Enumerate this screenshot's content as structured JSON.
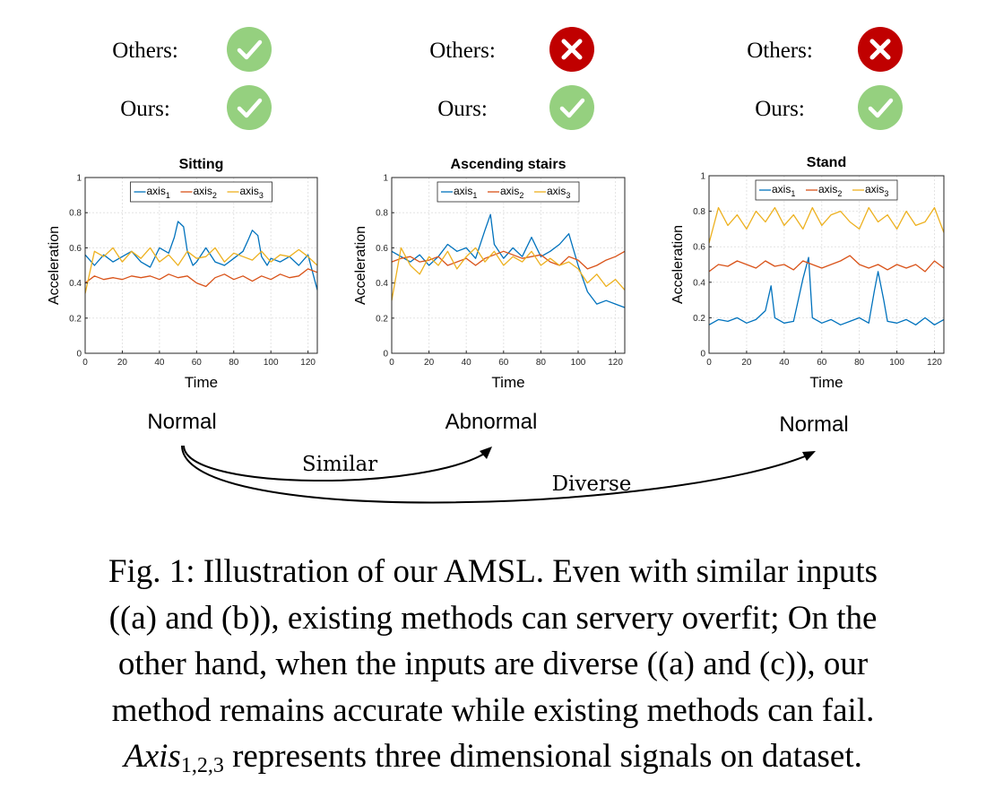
{
  "status_rows": [
    {
      "label": "Others:",
      "status": [
        "check",
        "cross",
        "cross"
      ]
    },
    {
      "label": "Ours:",
      "status": [
        "check",
        "check",
        "check"
      ]
    }
  ],
  "colors": {
    "check": "#95d07f",
    "cross": "#c00000",
    "axis1": "#0072bd",
    "axis2": "#d95319",
    "axis3": "#edb120",
    "grid": "#e3e3e3"
  },
  "icons": {
    "check": "check-icon",
    "cross": "cross-icon"
  },
  "panel_labels": [
    "Normal",
    "Abnormal",
    "Normal"
  ],
  "arrows": {
    "similar": "Similar",
    "diverse": "Diverse"
  },
  "chart_data": [
    {
      "type": "line",
      "title": "Sitting",
      "xlabel": "Time",
      "ylabel": "Acceleration",
      "xlim": [
        0,
        125
      ],
      "ylim": [
        0,
        1
      ],
      "xticks": [
        "0",
        "20",
        "40",
        "60",
        "80",
        "100",
        "120"
      ],
      "yticks": [
        "0",
        "0.2",
        "0.4",
        "0.6",
        "0.8",
        "1"
      ],
      "grid": true,
      "legend": "top-center",
      "series": [
        {
          "name": "axis1",
          "label_main": "axis",
          "label_sub": "1",
          "x": [
            0,
            5,
            10,
            15,
            20,
            25,
            30,
            35,
            40,
            45,
            48,
            50,
            53,
            55,
            58,
            60,
            65,
            70,
            75,
            80,
            85,
            88,
            90,
            93,
            95,
            98,
            100,
            105,
            110,
            115,
            120,
            125
          ],
          "y": [
            0.56,
            0.5,
            0.56,
            0.52,
            0.55,
            0.58,
            0.52,
            0.49,
            0.6,
            0.57,
            0.66,
            0.75,
            0.72,
            0.58,
            0.5,
            0.52,
            0.6,
            0.52,
            0.5,
            0.54,
            0.58,
            0.65,
            0.7,
            0.67,
            0.55,
            0.5,
            0.54,
            0.52,
            0.55,
            0.5,
            0.56,
            0.36
          ]
        },
        {
          "name": "axis2",
          "label_main": "axis",
          "label_sub": "2",
          "x": [
            0,
            5,
            10,
            15,
            20,
            25,
            30,
            35,
            40,
            45,
            50,
            55,
            60,
            65,
            70,
            75,
            80,
            85,
            90,
            95,
            100,
            105,
            110,
            115,
            120,
            125
          ],
          "y": [
            0.4,
            0.44,
            0.42,
            0.43,
            0.42,
            0.44,
            0.43,
            0.44,
            0.42,
            0.45,
            0.43,
            0.44,
            0.4,
            0.38,
            0.43,
            0.45,
            0.42,
            0.44,
            0.41,
            0.44,
            0.42,
            0.45,
            0.43,
            0.44,
            0.48,
            0.46
          ]
        },
        {
          "name": "axis3",
          "label_main": "axis",
          "label_sub": "3",
          "x": [
            0,
            5,
            10,
            15,
            20,
            25,
            30,
            35,
            40,
            45,
            50,
            55,
            60,
            65,
            70,
            75,
            80,
            85,
            90,
            95,
            100,
            105,
            110,
            115,
            120,
            125
          ],
          "y": [
            0.34,
            0.58,
            0.55,
            0.6,
            0.52,
            0.58,
            0.54,
            0.6,
            0.52,
            0.56,
            0.5,
            0.58,
            0.54,
            0.55,
            0.6,
            0.52,
            0.57,
            0.55,
            0.53,
            0.58,
            0.52,
            0.56,
            0.55,
            0.59,
            0.55,
            0.5
          ]
        }
      ]
    },
    {
      "type": "line",
      "title": "Ascending stairs",
      "xlabel": "Time",
      "ylabel": "Acceleration",
      "xlim": [
        0,
        125
      ],
      "ylim": [
        0,
        1
      ],
      "xticks": [
        "0",
        "20",
        "40",
        "60",
        "80",
        "100",
        "120"
      ],
      "yticks": [
        "0",
        "0.2",
        "0.4",
        "0.6",
        "0.8",
        "1"
      ],
      "grid": true,
      "legend": "top-center",
      "series": [
        {
          "name": "axis1",
          "label_main": "axis",
          "label_sub": "1",
          "x": [
            0,
            5,
            10,
            15,
            20,
            25,
            30,
            35,
            40,
            45,
            50,
            53,
            55,
            60,
            65,
            70,
            75,
            80,
            85,
            90,
            95,
            100,
            105,
            110,
            115,
            120,
            125
          ],
          "y": [
            0.58,
            0.55,
            0.52,
            0.56,
            0.5,
            0.55,
            0.62,
            0.58,
            0.6,
            0.54,
            0.7,
            0.79,
            0.62,
            0.54,
            0.6,
            0.55,
            0.66,
            0.55,
            0.58,
            0.62,
            0.68,
            0.5,
            0.35,
            0.28,
            0.3,
            0.28,
            0.26
          ]
        },
        {
          "name": "axis2",
          "label_main": "axis",
          "label_sub": "2",
          "x": [
            0,
            5,
            10,
            15,
            20,
            25,
            30,
            35,
            40,
            45,
            50,
            55,
            60,
            65,
            70,
            75,
            80,
            85,
            90,
            95,
            100,
            105,
            110,
            115,
            120,
            125
          ],
          "y": [
            0.52,
            0.54,
            0.55,
            0.52,
            0.53,
            0.55,
            0.5,
            0.52,
            0.54,
            0.5,
            0.54,
            0.56,
            0.58,
            0.56,
            0.54,
            0.55,
            0.56,
            0.52,
            0.5,
            0.55,
            0.53,
            0.48,
            0.5,
            0.53,
            0.55,
            0.58
          ]
        },
        {
          "name": "axis3",
          "label_main": "axis",
          "label_sub": "3",
          "x": [
            0,
            5,
            10,
            15,
            20,
            25,
            30,
            35,
            40,
            45,
            50,
            55,
            60,
            65,
            70,
            75,
            80,
            85,
            90,
            95,
            100,
            105,
            110,
            115,
            120,
            125
          ],
          "y": [
            0.3,
            0.6,
            0.5,
            0.45,
            0.55,
            0.5,
            0.58,
            0.48,
            0.55,
            0.6,
            0.52,
            0.58,
            0.5,
            0.55,
            0.52,
            0.58,
            0.5,
            0.54,
            0.5,
            0.52,
            0.48,
            0.4,
            0.45,
            0.38,
            0.42,
            0.36
          ]
        }
      ]
    },
    {
      "type": "line",
      "title": "Stand",
      "xlabel": "Time",
      "ylabel": "Acceleration",
      "xlim": [
        0,
        125
      ],
      "ylim": [
        0,
        1
      ],
      "xticks": [
        "0",
        "20",
        "40",
        "60",
        "80",
        "100",
        "120"
      ],
      "yticks": [
        "0",
        "0.2",
        "0.4",
        "0.6",
        "0.8",
        "1"
      ],
      "grid": true,
      "legend": "top-center",
      "series": [
        {
          "name": "axis1",
          "label_main": "axis",
          "label_sub": "1",
          "x": [
            0,
            5,
            10,
            15,
            20,
            25,
            30,
            33,
            35,
            40,
            45,
            50,
            53,
            55,
            60,
            65,
            70,
            75,
            80,
            85,
            88,
            90,
            93,
            95,
            100,
            105,
            110,
            115,
            120,
            125
          ],
          "y": [
            0.16,
            0.19,
            0.18,
            0.2,
            0.17,
            0.19,
            0.24,
            0.38,
            0.2,
            0.17,
            0.18,
            0.42,
            0.54,
            0.2,
            0.17,
            0.19,
            0.16,
            0.18,
            0.2,
            0.17,
            0.35,
            0.46,
            0.3,
            0.18,
            0.17,
            0.19,
            0.16,
            0.2,
            0.16,
            0.19
          ]
        },
        {
          "name": "axis2",
          "label_main": "axis",
          "label_sub": "2",
          "x": [
            0,
            5,
            10,
            15,
            20,
            25,
            30,
            35,
            40,
            45,
            50,
            55,
            60,
            65,
            70,
            75,
            80,
            85,
            90,
            95,
            100,
            105,
            110,
            115,
            120,
            125
          ],
          "y": [
            0.46,
            0.5,
            0.49,
            0.52,
            0.5,
            0.48,
            0.52,
            0.49,
            0.5,
            0.47,
            0.52,
            0.5,
            0.48,
            0.5,
            0.52,
            0.55,
            0.5,
            0.48,
            0.5,
            0.47,
            0.5,
            0.48,
            0.5,
            0.46,
            0.52,
            0.48
          ]
        },
        {
          "name": "axis3",
          "label_main": "axis",
          "label_sub": "3",
          "x": [
            0,
            5,
            10,
            15,
            20,
            25,
            30,
            35,
            40,
            45,
            50,
            55,
            60,
            65,
            70,
            75,
            80,
            85,
            90,
            95,
            100,
            105,
            110,
            115,
            120,
            125
          ],
          "y": [
            0.62,
            0.82,
            0.72,
            0.78,
            0.7,
            0.8,
            0.74,
            0.82,
            0.72,
            0.78,
            0.7,
            0.82,
            0.72,
            0.78,
            0.8,
            0.74,
            0.7,
            0.82,
            0.74,
            0.78,
            0.7,
            0.8,
            0.72,
            0.74,
            0.82,
            0.68
          ]
        }
      ]
    }
  ],
  "caption": {
    "line1": "Fig. 1: Illustration of our AMSL. Even with similar inputs",
    "line2": "((a) and (b)), existing methods can servery overfit; On the",
    "line3": "other hand, when the inputs are diverse ((a) and (c)), our",
    "line4": "method remains accurate while existing methods can fail.",
    "math_main": "Axis",
    "math_sub": "1,2,3",
    "line5_rest": " represents three dimensional signals on dataset."
  }
}
